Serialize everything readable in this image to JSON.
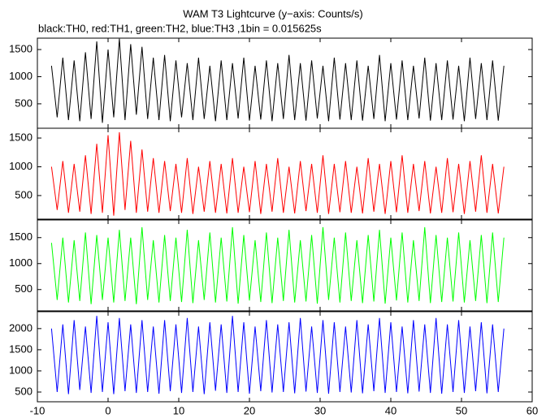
{
  "chart_data": [
    {
      "type": "line",
      "title": "WAM T3 Lightcurve (y−axis: Counts/s)",
      "subtitle": "black:TH0, red:TH1, green:TH2, blue:TH3 ,1bin = 0.015625s",
      "color": "#000000",
      "x": [
        -8,
        -7.2,
        -6.4,
        -5.6,
        -4.8,
        -4,
        -3.2,
        -2.4,
        -1.6,
        -0.8,
        0,
        0.8,
        1.6,
        2.4,
        3.2,
        4,
        4.8,
        5.6,
        6.4,
        7.2,
        8,
        8.8,
        9.6,
        10.4,
        11.2,
        12,
        12.8,
        13.6,
        14.4,
        15.2,
        16,
        16.8,
        17.6,
        18.4,
        19.2,
        20,
        20.8,
        21.6,
        22.4,
        23.2,
        24,
        24.8,
        25.6,
        26.4,
        27.2,
        28,
        28.8,
        29.6,
        30.4,
        31.2,
        32,
        32.8,
        33.6,
        34.4,
        35.2,
        36,
        36.8,
        37.6,
        38.4,
        39.2,
        40,
        40.8,
        41.6,
        42.4,
        43.2,
        44,
        44.8,
        45.6,
        46.4,
        47.2,
        48,
        48.8,
        49.6,
        50.4,
        51.2,
        52,
        52.8,
        53.6,
        54.4,
        55.2,
        56
      ],
      "values": [
        1200,
        250,
        1350,
        200,
        1300,
        180,
        1450,
        220,
        1650,
        150,
        1500,
        250,
        1700,
        200,
        1600,
        300,
        1550,
        220,
        1350,
        200,
        1400,
        180,
        1300,
        250,
        1250,
        200,
        1350,
        220,
        1200,
        180,
        1300,
        200,
        1250,
        230,
        1350,
        190,
        1200,
        210,
        1300,
        180,
        1250,
        220,
        1400,
        200,
        1250,
        190,
        1300,
        230,
        1200,
        180,
        1350,
        210,
        1250,
        200,
        1300,
        190,
        1200,
        220,
        1400,
        180,
        1250,
        210,
        1300,
        200,
        1200,
        230,
        1350,
        190,
        1250,
        200,
        1300,
        210,
        1200,
        180,
        1350,
        220,
        1250,
        200,
        1300,
        190,
        1200
      ],
      "xlim": [
        -10,
        60
      ],
      "ylim": [
        50,
        1710
      ],
      "yticks": [
        500,
        1000,
        1500
      ]
    },
    {
      "type": "line",
      "color": "#ff0000",
      "x": [
        -8,
        -7.2,
        -6.4,
        -5.6,
        -4.8,
        -4,
        -3.2,
        -2.4,
        -1.6,
        -0.8,
        0,
        0.8,
        1.6,
        2.4,
        3.2,
        4,
        4.8,
        5.6,
        6.4,
        7.2,
        8,
        8.8,
        9.6,
        10.4,
        11.2,
        12,
        12.8,
        13.6,
        14.4,
        15.2,
        16,
        16.8,
        17.6,
        18.4,
        19.2,
        20,
        20.8,
        21.6,
        22.4,
        23.2,
        24,
        24.8,
        25.6,
        26.4,
        27.2,
        28,
        28.8,
        29.6,
        30.4,
        31.2,
        32,
        32.8,
        33.6,
        34.4,
        35.2,
        36,
        36.8,
        37.6,
        38.4,
        39.2,
        40,
        40.8,
        41.6,
        42.4,
        43.2,
        44,
        44.8,
        45.6,
        46.4,
        47.2,
        48,
        48.8,
        49.6,
        50.4,
        51.2,
        52,
        52.8,
        53.6,
        54.4,
        55.2,
        56
      ],
      "values": [
        1000,
        250,
        1100,
        200,
        1050,
        220,
        1200,
        180,
        1400,
        200,
        1550,
        150,
        1600,
        250,
        1450,
        200,
        1300,
        220,
        1150,
        200,
        1100,
        230,
        1050,
        200,
        1150,
        180,
        1000,
        220,
        1100,
        200,
        1050,
        190,
        1150,
        200,
        1000,
        210,
        1100,
        180,
        1050,
        220,
        1150,
        200,
        1000,
        190,
        1100,
        230,
        1050,
        200,
        1200,
        180,
        1050,
        210,
        1100,
        200,
        1000,
        190,
        1150,
        220,
        1050,
        180,
        1100,
        210,
        1200,
        200,
        1050,
        230,
        1100,
        190,
        1000,
        200,
        1150,
        210,
        1050,
        180,
        1100,
        220,
        1200,
        200,
        1050,
        190,
        1000
      ],
      "xlim": [
        -10,
        60
      ],
      "ylim": [
        90,
        1670
      ],
      "yticks": [
        500,
        1000,
        1500
      ]
    },
    {
      "type": "line",
      "color": "#00ff00",
      "x": [
        -8,
        -7.2,
        -6.4,
        -5.6,
        -4.8,
        -4,
        -3.2,
        -2.4,
        -1.6,
        -0.8,
        0,
        0.8,
        1.6,
        2.4,
        3.2,
        4,
        4.8,
        5.6,
        6.4,
        7.2,
        8,
        8.8,
        9.6,
        10.4,
        11.2,
        12,
        12.8,
        13.6,
        14.4,
        15.2,
        16,
        16.8,
        17.6,
        18.4,
        19.2,
        20,
        20.8,
        21.6,
        22.4,
        23.2,
        24,
        24.8,
        25.6,
        26.4,
        27.2,
        28,
        28.8,
        29.6,
        30.4,
        31.2,
        32,
        32.8,
        33.6,
        34.4,
        35.2,
        36,
        36.8,
        37.6,
        38.4,
        39.2,
        40,
        40.8,
        41.6,
        42.4,
        43.2,
        44,
        44.8,
        45.6,
        46.4,
        47.2,
        48,
        48.8,
        49.6,
        50.4,
        51.2,
        52,
        52.8,
        53.6,
        54.4,
        55.2,
        56
      ],
      "values": [
        1400,
        300,
        1500,
        250,
        1450,
        280,
        1600,
        220,
        1550,
        300,
        1500,
        250,
        1650,
        280,
        1500,
        220,
        1700,
        300,
        1450,
        250,
        1550,
        280,
        1500,
        260,
        1650,
        240,
        1450,
        300,
        1600,
        250,
        1500,
        270,
        1700,
        230,
        1550,
        290,
        1450,
        260,
        1600,
        240,
        1500,
        280,
        1650,
        250,
        1450,
        270,
        1550,
        230,
        1700,
        300,
        1500,
        250,
        1600,
        280,
        1450,
        240,
        1550,
        270,
        1650,
        230,
        1500,
        290,
        1600,
        250,
        1450,
        280,
        1700,
        240,
        1550,
        260,
        1500,
        270,
        1600,
        250,
        1450,
        280,
        1550,
        240,
        1600,
        260,
        1500
      ],
      "xlim": [
        -10,
        60
      ],
      "ylim": [
        90,
        1840
      ],
      "yticks": [
        500,
        1000,
        1500
      ]
    },
    {
      "type": "line",
      "color": "#0000ff",
      "x": [
        -8,
        -7.2,
        -6.4,
        -5.6,
        -4.8,
        -4,
        -3.2,
        -2.4,
        -1.6,
        -0.8,
        0,
        0.8,
        1.6,
        2.4,
        3.2,
        4,
        4.8,
        5.6,
        6.4,
        7.2,
        8,
        8.8,
        9.6,
        10.4,
        11.2,
        12,
        12.8,
        13.6,
        14.4,
        15.2,
        16,
        16.8,
        17.6,
        18.4,
        19.2,
        20,
        20.8,
        21.6,
        22.4,
        23.2,
        24,
        24.8,
        25.6,
        26.4,
        27.2,
        28,
        28.8,
        29.6,
        30.4,
        31.2,
        32,
        32.8,
        33.6,
        34.4,
        35.2,
        36,
        36.8,
        37.6,
        38.4,
        39.2,
        40,
        40.8,
        41.6,
        42.4,
        43.2,
        44,
        44.8,
        45.6,
        46.4,
        47.2,
        48,
        48.8,
        49.6,
        50.4,
        51.2,
        52,
        52.8,
        53.6,
        54.4,
        55.2,
        56
      ],
      "values": [
        2000,
        500,
        2100,
        450,
        2200,
        550,
        2050,
        480,
        2300,
        500,
        2150,
        450,
        2250,
        520,
        2100,
        480,
        2200,
        500,
        2050,
        460,
        2200,
        520,
        2100,
        480,
        2250,
        500,
        2050,
        450,
        2150,
        530,
        2100,
        480,
        2300,
        500,
        2150,
        460,
        2050,
        520,
        2200,
        490,
        2100,
        500,
        2150,
        470,
        2250,
        510,
        2050,
        480,
        2200,
        460,
        2150,
        500,
        2050,
        490,
        2200,
        470,
        2100,
        520,
        2250,
        480,
        2150,
        500,
        2050,
        470,
        2200,
        510,
        2100,
        480,
        2250,
        460,
        2100,
        500,
        2200,
        480,
        2050,
        520,
        2150,
        470,
        2100,
        500,
        2000
      ],
      "xlim": [
        -10,
        60
      ],
      "ylim": [
        270,
        2400
      ],
      "yticks": [
        500,
        1000,
        1500,
        2000
      ],
      "xticks": [
        -10,
        0,
        10,
        20,
        30,
        40,
        50,
        60
      ]
    }
  ]
}
